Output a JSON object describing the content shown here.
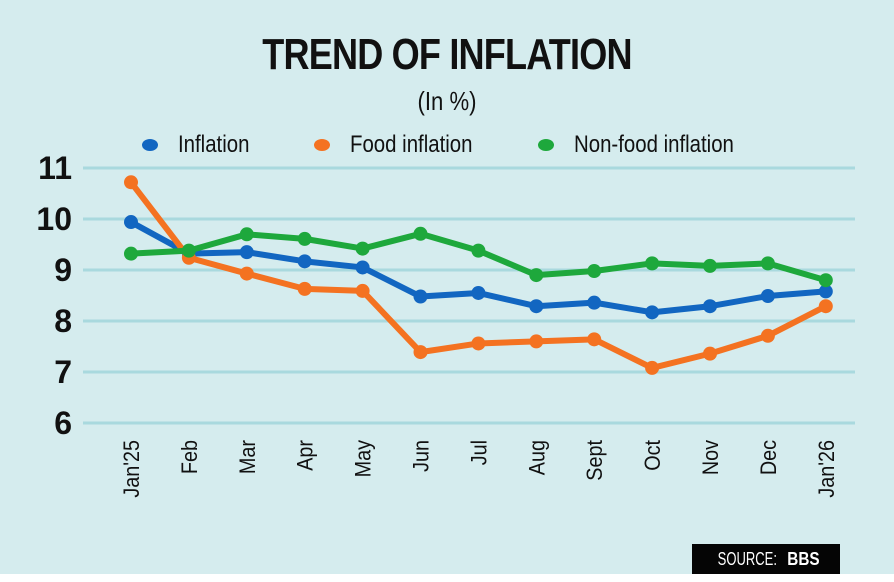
{
  "chart_data": {
    "type": "line",
    "title": "TREND OF INFLATION",
    "subtitle": "(In %)",
    "xlabel": "",
    "ylabel": "",
    "ylim": [
      6,
      11
    ],
    "yticks": [
      6,
      7,
      8,
      9,
      10,
      11
    ],
    "grid": true,
    "legend_position": "top-center",
    "categories": [
      "Jan'25",
      "Feb",
      "Mar",
      "Apr",
      "May",
      "Jun",
      "Jul",
      "Aug",
      "Sept",
      "Oct",
      "Nov",
      "Dec",
      "Jan'26"
    ],
    "series": [
      {
        "name": "Inflation",
        "color": "#1266c1",
        "values": [
          9.94,
          9.32,
          9.35,
          9.17,
          9.05,
          8.48,
          8.55,
          8.29,
          8.36,
          8.17,
          8.29,
          8.49,
          8.58
        ]
      },
      {
        "name": "Food inflation",
        "color": "#f47221",
        "values": [
          10.72,
          9.24,
          8.93,
          8.63,
          8.59,
          7.39,
          7.56,
          7.6,
          7.64,
          7.08,
          7.36,
          7.71,
          8.29
        ]
      },
      {
        "name": "Non-food inflation",
        "color": "#1ea83c",
        "values": [
          9.32,
          9.38,
          9.7,
          9.61,
          9.42,
          9.71,
          9.38,
          8.9,
          8.98,
          9.13,
          9.08,
          9.13,
          8.8
        ]
      }
    ],
    "source_label": "SOURCE:",
    "source_name": "BBS"
  },
  "colors": {
    "background": "#d5ecee",
    "gridline": "#a9d9de"
  }
}
